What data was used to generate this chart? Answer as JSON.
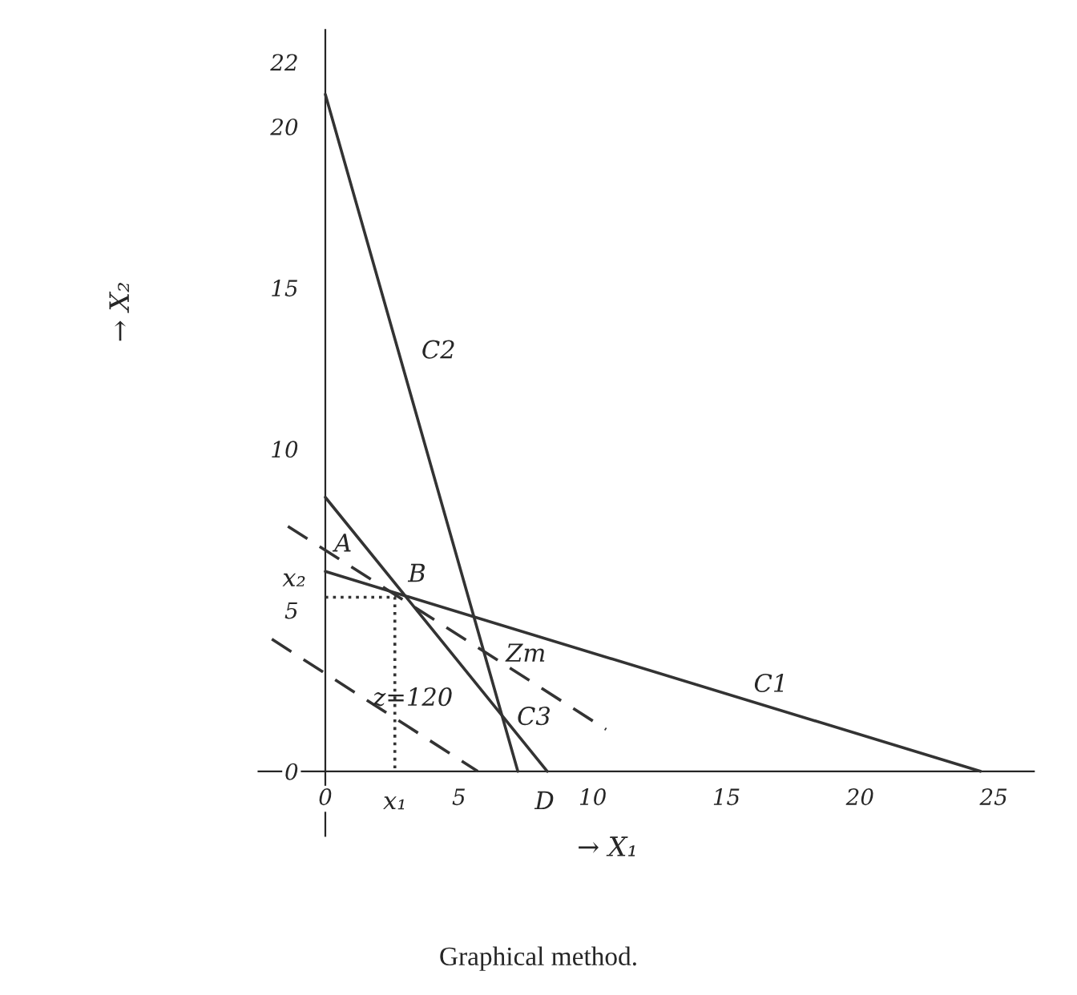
{
  "chart_data": {
    "type": "line",
    "xlabel": "→ X₁",
    "ylabel": "→ X₂",
    "xlim": [
      -2.5,
      26.5
    ],
    "ylim": [
      -2,
      23
    ],
    "xticks": [
      0,
      5,
      10,
      15,
      20,
      25
    ],
    "yticks": [
      0,
      5,
      10,
      15,
      20,
      22
    ],
    "grid": false,
    "legend": false,
    "marker": "none",
    "series": [
      {
        "name": "C1",
        "line_style": "solid",
        "color": "#333333",
        "x": [
          0,
          24.5
        ],
        "values": [
          6.2,
          0
        ]
      },
      {
        "name": "C2",
        "line_style": "solid",
        "color": "#333333",
        "x": [
          0,
          7.2
        ],
        "values": [
          21,
          0
        ]
      },
      {
        "name": "C3",
        "line_style": "solid",
        "color": "#333333",
        "x": [
          0,
          8.3
        ],
        "values": [
          8.5,
          0
        ]
      },
      {
        "name": "z=120",
        "line_style": "dashed",
        "color": "#333333",
        "x": [
          -2,
          5.7
        ],
        "values": [
          4.1,
          0
        ]
      },
      {
        "name": "Zm",
        "line_style": "dashed",
        "color": "#333333",
        "x": [
          -1.4,
          10.5
        ],
        "values": [
          7.6,
          1.3
        ]
      },
      {
        "line_style": "dotted",
        "color": "#333333",
        "x": [
          0,
          2.6,
          2.6
        ],
        "values": [
          5.4,
          5.4,
          0
        ]
      }
    ],
    "annotations": [
      {
        "text": "A",
        "x": 0,
        "y": 6.2
      },
      {
        "text": "B",
        "x": 2.6,
        "y": 5.4
      },
      {
        "text": "D",
        "x": 7.2,
        "y": 0
      },
      {
        "text": "x₁",
        "x": 2.6,
        "y": 0
      },
      {
        "text": "x₂",
        "x": 0,
        "y": 5.4
      },
      "Graphical method."
    ]
  }
}
